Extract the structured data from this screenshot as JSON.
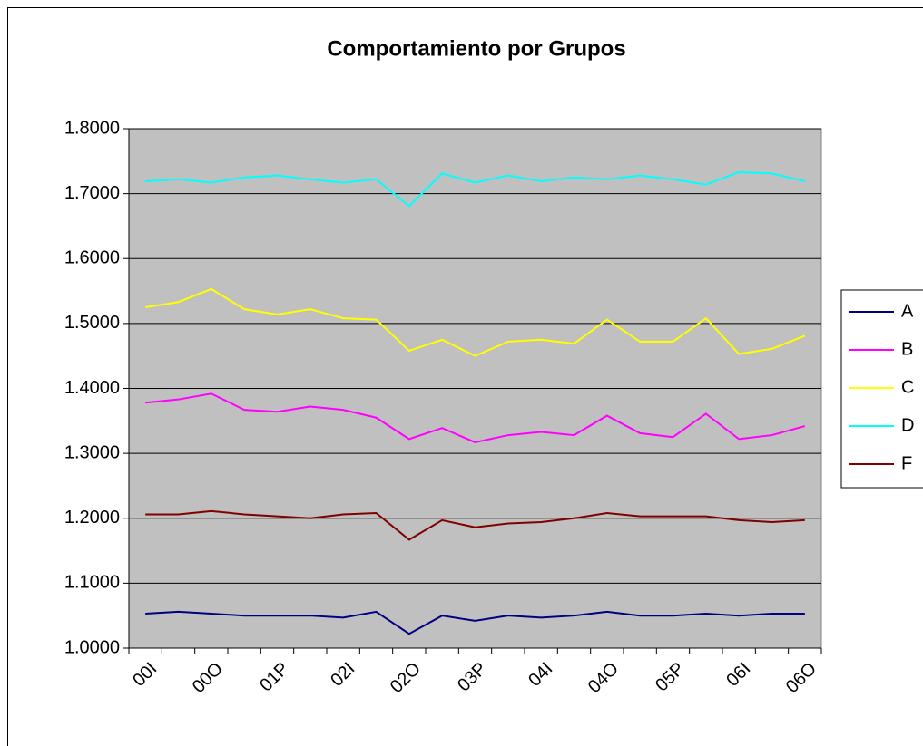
{
  "chart_data": {
    "type": "line",
    "title": "Comportamiento por Grupos",
    "categories": [
      "00I",
      null,
      "00O",
      null,
      "01P",
      null,
      "02I",
      null,
      "02O",
      null,
      "03P",
      null,
      "04I",
      null,
      "04O",
      null,
      "05P",
      null,
      "06I",
      null,
      "06O"
    ],
    "ylim": [
      1.0,
      1.8
    ],
    "yticks": [
      {
        "value": 1.0,
        "label": "1.0000"
      },
      {
        "value": 1.1,
        "label": "1.1000"
      },
      {
        "value": 1.2,
        "label": "1.2000"
      },
      {
        "value": 1.3,
        "label": "1.3000"
      },
      {
        "value": 1.4,
        "label": "1.4000"
      },
      {
        "value": 1.5,
        "label": "1.5000"
      },
      {
        "value": 1.6,
        "label": "1.6000"
      },
      {
        "value": 1.7,
        "label": "1.7000"
      },
      {
        "value": 1.8,
        "label": "1.8000"
      }
    ],
    "grid": true,
    "legend": "right",
    "series": [
      {
        "name": "A",
        "color": "#000080",
        "values": [
          1.053,
          1.056,
          1.053,
          1.05,
          1.05,
          1.05,
          1.047,
          1.056,
          1.022,
          1.05,
          1.042,
          1.05,
          1.047,
          1.05,
          1.056,
          1.05,
          1.05,
          1.053,
          1.05,
          1.053,
          1.053
        ]
      },
      {
        "name": "B",
        "color": "#ff00ff",
        "values": [
          1.378,
          1.383,
          1.392,
          1.367,
          1.364,
          1.372,
          1.367,
          1.355,
          1.322,
          1.339,
          1.317,
          1.328,
          1.333,
          1.328,
          1.358,
          1.331,
          1.325,
          1.361,
          1.322,
          1.328,
          1.342
        ]
      },
      {
        "name": "C",
        "color": "#ffff00",
        "values": [
          1.525,
          1.533,
          1.553,
          1.522,
          1.514,
          1.522,
          1.508,
          1.506,
          1.458,
          1.475,
          1.45,
          1.472,
          1.475,
          1.469,
          1.506,
          1.472,
          1.472,
          1.508,
          1.453,
          1.461,
          1.481
        ]
      },
      {
        "name": "D",
        "color": "#00ffff",
        "values": [
          1.719,
          1.722,
          1.717,
          1.725,
          1.728,
          1.722,
          1.717,
          1.722,
          1.681,
          1.731,
          1.717,
          1.728,
          1.719,
          1.725,
          1.722,
          1.728,
          1.722,
          1.714,
          1.733,
          1.731,
          1.719
        ]
      },
      {
        "name": "F",
        "color": "#800000",
        "values": [
          1.206,
          1.206,
          1.211,
          1.206,
          1.203,
          1.2,
          1.206,
          1.208,
          1.167,
          1.197,
          1.186,
          1.192,
          1.194,
          1.2,
          1.208,
          1.203,
          1.203,
          1.203,
          1.197,
          1.194,
          1.197
        ]
      }
    ]
  }
}
